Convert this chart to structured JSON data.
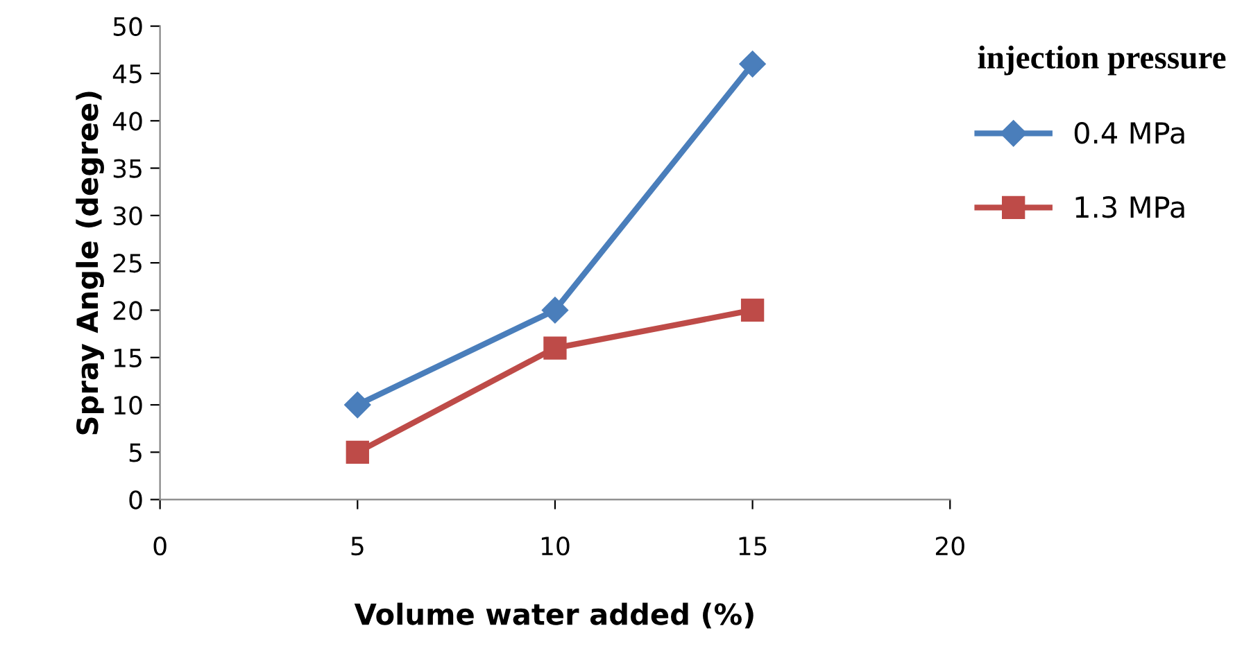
{
  "chart_data": {
    "type": "line",
    "xlabel": "Volume water added (%)",
    "ylabel": "Spray Angle (degree)",
    "legend_title": "injection pressure",
    "legend": "right",
    "grid": false,
    "xlim": [
      0,
      20
    ],
    "xticks": [
      0,
      5,
      10,
      15,
      20
    ],
    "ylim": [
      0,
      50
    ],
    "yticks": [
      0,
      5,
      10,
      15,
      20,
      25,
      30,
      35,
      40,
      45,
      50
    ],
    "series": [
      {
        "name": "0.4 MPa",
        "color": "#4a7ebb",
        "marker": "diamond",
        "x": [
          5,
          10,
          15
        ],
        "values": [
          10,
          20,
          46
        ]
      },
      {
        "name": "1.3 MPa",
        "color": "#be4b48",
        "marker": "square",
        "x": [
          5,
          10,
          15
        ],
        "values": [
          5,
          16,
          20
        ]
      }
    ]
  }
}
